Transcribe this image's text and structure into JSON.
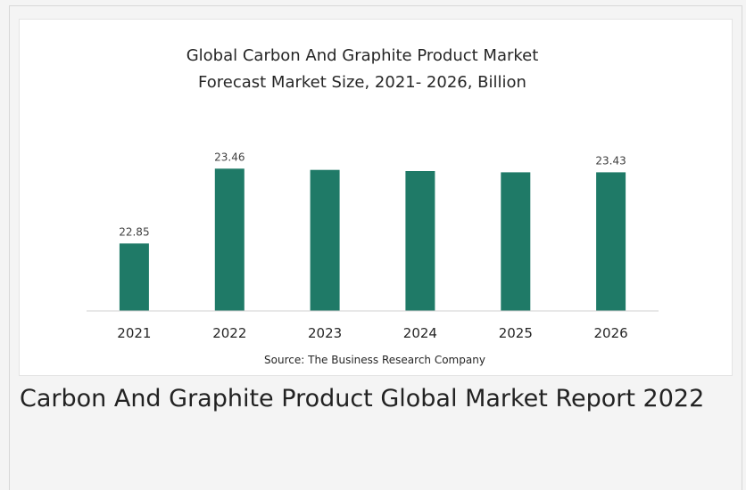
{
  "chart_data": {
    "type": "bar",
    "title_line1": "Global Carbon And Graphite Product Market",
    "title_line2": "Forecast Market Size, 2021- 2026, Billion",
    "categories": [
      "2021",
      "2022",
      "2023",
      "2024",
      "2025",
      "2026"
    ],
    "values": [
      22.85,
      23.46,
      23.45,
      23.44,
      23.43,
      23.43
    ],
    "data_labels": [
      "22.85",
      "23.46",
      "",
      "",
      "",
      "23.43"
    ],
    "source": "Source: The Business Research Company",
    "bar_color": "#1f7a67",
    "ylim": [
      22.3,
      23.6
    ],
    "grid": false,
    "legend": "none"
  },
  "caption": {
    "text": "Carbon And Graphite Product Global Market Report 2022"
  }
}
